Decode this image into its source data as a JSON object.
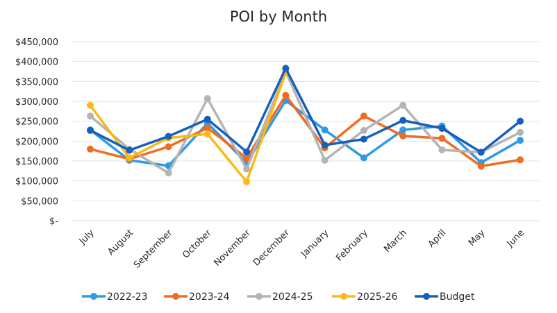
{
  "chart_data": {
    "type": "line",
    "title": "POI by Month",
    "xlabel": "",
    "ylabel": "",
    "ylim": [
      0,
      450000
    ],
    "y_ticks": [
      0,
      50000,
      100000,
      150000,
      200000,
      250000,
      300000,
      350000,
      400000,
      450000
    ],
    "y_tick_labels": [
      "$-",
      "$50,000",
      "$100,000",
      "$150,000",
      "$200,000",
      "$250,000",
      "$300,000",
      "$350,000",
      "$400,000",
      "$450,000"
    ],
    "grid": true,
    "legend_position": "bottom",
    "categories": [
      "July",
      "August",
      "September",
      "October",
      "November",
      "December",
      "January",
      "February",
      "March",
      "April",
      "May",
      "June"
    ],
    "series": [
      {
        "name": "2022-23",
        "color": "#2e9be6",
        "values": [
          228000,
          152000,
          138000,
          245000,
          145000,
          302000,
          228000,
          158000,
          228000,
          238000,
          146000,
          202000
        ]
      },
      {
        "name": "2023-24",
        "color": "#f26b21",
        "values": [
          180000,
          155000,
          186000,
          233000,
          157000,
          315000,
          183000,
          263000,
          213000,
          207000,
          137000,
          153000
        ]
      },
      {
        "name": "2024-25",
        "color": "#b4b4b4",
        "values": [
          263000,
          180000,
          120000,
          307000,
          130000,
          375000,
          152000,
          227000,
          290000,
          178000,
          172000,
          222000
        ]
      },
      {
        "name": "2025-26",
        "color": "#fdb913",
        "values": [
          290000,
          158000,
          208000,
          218000,
          98000,
          372000,
          null,
          null,
          null,
          null,
          null,
          null
        ]
      },
      {
        "name": "Budget",
        "color": "#1560bd",
        "values": [
          227000,
          177000,
          212000,
          255000,
          173000,
          383000,
          190000,
          205000,
          252000,
          232000,
          172000,
          250000
        ]
      }
    ]
  }
}
